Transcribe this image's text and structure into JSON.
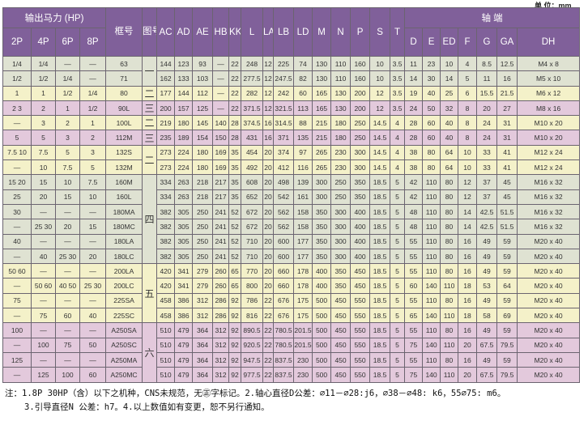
{
  "unit_label": "单 位：mm",
  "header": {
    "hp_group": "输出马力 (HP)",
    "poles": [
      "2P",
      "4P",
      "6P",
      "8P"
    ],
    "frame": "框号",
    "figure": "图号",
    "dims": [
      "AC",
      "AD",
      "AE",
      "HB",
      "KK",
      "L",
      "LA",
      "LB",
      "LD",
      "M",
      "N",
      "P",
      "S",
      "T"
    ],
    "shaft_group": "轴 端",
    "shaft": [
      "D",
      "E",
      "ED",
      "F",
      "G",
      "GA",
      "DH"
    ]
  },
  "row_colors": [
    "green",
    "green",
    "yellow",
    "pink",
    "yellow",
    "pink",
    "yellow",
    "yellow",
    "green",
    "green",
    "green",
    "green",
    "green",
    "green",
    "yellow",
    "yellow",
    "yellow",
    "yellow",
    "pink",
    "pink",
    "pink",
    "pink"
  ],
  "figure_groups": [
    {
      "label": "一",
      "rows": 2
    },
    {
      "label": "二",
      "rows": 1
    },
    {
      "label": "三",
      "rows": 1
    },
    {
      "label": "二",
      "rows": 1
    },
    {
      "label": "三",
      "rows": 1
    },
    {
      "label": "二",
      "rows": 2
    },
    {
      "label": "四",
      "rows": 6
    },
    {
      "label": "五",
      "rows": 4
    },
    {
      "label": "六",
      "rows": 4
    }
  ],
  "rows": [
    {
      "hp": [
        "1/4",
        "1/4",
        "—",
        "—"
      ],
      "frame": "63",
      "dims": [
        "144",
        "123",
        "93",
        "—",
        "22",
        "248",
        "12",
        "225",
        "74",
        "130",
        "110",
        "160",
        "10",
        "3.5"
      ],
      "shaft": [
        "11",
        "23",
        "10",
        "4",
        "8.5",
        "12.5",
        "M4 x 8"
      ]
    },
    {
      "hp": [
        "1/2",
        "1/2",
        "1/4",
        "—"
      ],
      "frame": "71",
      "dims": [
        "162",
        "133",
        "103",
        "—",
        "22",
        "277.5",
        "12",
        "247.5",
        "82",
        "130",
        "110",
        "160",
        "10",
        "3.5"
      ],
      "shaft": [
        "14",
        "30",
        "14",
        "5",
        "11",
        "16",
        "M5 x 10"
      ]
    },
    {
      "hp": [
        "1",
        "1",
        "1/2",
        "1/4"
      ],
      "frame": "80",
      "dims": [
        "177",
        "144",
        "112",
        "—",
        "22",
        "282",
        "12",
        "242",
        "60",
        "165",
        "130",
        "200",
        "12",
        "3.5"
      ],
      "shaft": [
        "19",
        "40",
        "25",
        "6",
        "15.5",
        "21.5",
        "M6 x 12"
      ]
    },
    {
      "hp": [
        "2 3",
        "2",
        "1",
        "1/2"
      ],
      "frame": "90L",
      "dims": [
        "200",
        "157",
        "125",
        "—",
        "22",
        "371.5",
        "12",
        "321.5",
        "113",
        "165",
        "130",
        "200",
        "12",
        "3.5"
      ],
      "shaft": [
        "24",
        "50",
        "32",
        "8",
        "20",
        "27",
        "M8 x 16"
      ]
    },
    {
      "hp": [
        "—",
        "3",
        "2",
        "1"
      ],
      "frame": "100L",
      "dims": [
        "219",
        "180",
        "145",
        "140",
        "28",
        "374.5",
        "16",
        "314.5",
        "88",
        "215",
        "180",
        "250",
        "14.5",
        "4"
      ],
      "shaft": [
        "28",
        "60",
        "40",
        "8",
        "24",
        "31",
        "M10 x 20"
      ]
    },
    {
      "hp": [
        "5",
        "5",
        "3",
        "2"
      ],
      "frame": "112M",
      "dims": [
        "235",
        "189",
        "154",
        "150",
        "28",
        "431",
        "16",
        "371",
        "135",
        "215",
        "180",
        "250",
        "14.5",
        "4"
      ],
      "shaft": [
        "28",
        "60",
        "40",
        "8",
        "24",
        "31",
        "M10 x 20"
      ]
    },
    {
      "hp": [
        "7.5 10",
        "7.5",
        "5",
        "3"
      ],
      "frame": "132S",
      "dims": [
        "273",
        "224",
        "180",
        "169",
        "35",
        "454",
        "20",
        "374",
        "97",
        "265",
        "230",
        "300",
        "14.5",
        "4"
      ],
      "shaft": [
        "38",
        "80",
        "64",
        "10",
        "33",
        "41",
        "M12 x 24"
      ]
    },
    {
      "hp": [
        "—",
        "10",
        "7.5",
        "5"
      ],
      "frame": "132M",
      "dims": [
        "273",
        "224",
        "180",
        "169",
        "35",
        "492",
        "20",
        "412",
        "116",
        "265",
        "230",
        "300",
        "14.5",
        "4"
      ],
      "shaft": [
        "38",
        "80",
        "64",
        "10",
        "33",
        "41",
        "M12 x 24"
      ]
    },
    {
      "hp": [
        "15 20",
        "15",
        "10",
        "7.5"
      ],
      "frame": "160M",
      "dims": [
        "334",
        "263",
        "218",
        "217",
        "35",
        "608",
        "20",
        "498",
        "139",
        "300",
        "250",
        "350",
        "18.5",
        "5"
      ],
      "shaft": [
        "42",
        "110",
        "80",
        "12",
        "37",
        "45",
        "M16 x 32"
      ]
    },
    {
      "hp": [
        "25",
        "20",
        "15",
        "10"
      ],
      "frame": "160L",
      "dims": [
        "334",
        "263",
        "218",
        "217",
        "35",
        "652",
        "20",
        "542",
        "161",
        "300",
        "250",
        "350",
        "18.5",
        "5"
      ],
      "shaft": [
        "42",
        "110",
        "80",
        "12",
        "37",
        "45",
        "M16 x 32"
      ]
    },
    {
      "hp": [
        "30",
        "—",
        "—",
        "—"
      ],
      "frame": "180MA",
      "dims": [
        "382",
        "305",
        "250",
        "241",
        "52",
        "672",
        "20",
        "562",
        "158",
        "350",
        "300",
        "400",
        "18.5",
        "5"
      ],
      "shaft": [
        "48",
        "110",
        "80",
        "14",
        "42.5",
        "51.5",
        "M16 x 32"
      ]
    },
    {
      "hp": [
        "—",
        "25 30",
        "20",
        "15"
      ],
      "frame": "180MC",
      "dims": [
        "382",
        "305",
        "250",
        "241",
        "52",
        "672",
        "20",
        "562",
        "158",
        "350",
        "300",
        "400",
        "18.5",
        "5"
      ],
      "shaft": [
        "48",
        "110",
        "80",
        "14",
        "42.5",
        "51.5",
        "M16 x 32"
      ]
    },
    {
      "hp": [
        "40",
        "—",
        "—",
        "—"
      ],
      "frame": "180LA",
      "dims": [
        "382",
        "305",
        "250",
        "241",
        "52",
        "710",
        "20",
        "600",
        "177",
        "350",
        "300",
        "400",
        "18.5",
        "5"
      ],
      "shaft": [
        "55",
        "110",
        "80",
        "16",
        "49",
        "59",
        "M20 x 40"
      ]
    },
    {
      "hp": [
        "—",
        "40",
        "25 30",
        "20"
      ],
      "frame": "180LC",
      "dims": [
        "382",
        "305",
        "250",
        "241",
        "52",
        "710",
        "20",
        "600",
        "177",
        "350",
        "300",
        "400",
        "18.5",
        "5"
      ],
      "shaft": [
        "55",
        "110",
        "80",
        "16",
        "49",
        "59",
        "M20 x 40"
      ]
    },
    {
      "hp": [
        "50 60",
        "—",
        "—",
        "—"
      ],
      "frame": "200LA",
      "dims": [
        "420",
        "341",
        "279",
        "260",
        "65",
        "770",
        "20",
        "660",
        "178",
        "400",
        "350",
        "450",
        "18.5",
        "5"
      ],
      "shaft": [
        "55",
        "110",
        "80",
        "16",
        "49",
        "59",
        "M20 x 40"
      ]
    },
    {
      "hp": [
        "—",
        "50 60",
        "40 50",
        "25 30"
      ],
      "frame": "200LC",
      "dims": [
        "420",
        "341",
        "279",
        "260",
        "65",
        "800",
        "20",
        "660",
        "178",
        "400",
        "350",
        "450",
        "18.5",
        "5"
      ],
      "shaft": [
        "60",
        "140",
        "110",
        "18",
        "53",
        "64",
        "M20 x 40"
      ]
    },
    {
      "hp": [
        "75",
        "—",
        "—",
        "—"
      ],
      "frame": "225SA",
      "dims": [
        "458",
        "386",
        "312",
        "286",
        "92",
        "786",
        "22",
        "676",
        "175",
        "500",
        "450",
        "550",
        "18.5",
        "5"
      ],
      "shaft": [
        "55",
        "110",
        "80",
        "16",
        "49",
        "59",
        "M20 x 40"
      ]
    },
    {
      "hp": [
        "—",
        "75",
        "60",
        "40"
      ],
      "frame": "225SC",
      "dims": [
        "458",
        "386",
        "312",
        "286",
        "92",
        "816",
        "22",
        "676",
        "175",
        "500",
        "450",
        "550",
        "18.5",
        "5"
      ],
      "shaft": [
        "65",
        "140",
        "110",
        "18",
        "58",
        "69",
        "M20 x 40"
      ]
    },
    {
      "hp": [
        "100",
        "—",
        "—",
        "—"
      ],
      "frame": "A250SA",
      "dims": [
        "510",
        "479",
        "364",
        "312",
        "92",
        "890.5",
        "22",
        "780.5",
        "201.5",
        "500",
        "450",
        "550",
        "18.5",
        "5"
      ],
      "shaft": [
        "55",
        "110",
        "80",
        "16",
        "49",
        "59",
        "M20 x 40"
      ]
    },
    {
      "hp": [
        "—",
        "100",
        "75",
        "50"
      ],
      "frame": "A250SC",
      "dims": [
        "510",
        "479",
        "364",
        "312",
        "92",
        "920.5",
        "22",
        "780.5",
        "201.5",
        "500",
        "450",
        "550",
        "18.5",
        "5"
      ],
      "shaft": [
        "75",
        "140",
        "110",
        "20",
        "67.5",
        "79.5",
        "M20 x 40"
      ]
    },
    {
      "hp": [
        "125",
        "—",
        "—",
        "—"
      ],
      "frame": "A250MA",
      "dims": [
        "510",
        "479",
        "364",
        "312",
        "92",
        "947.5",
        "22",
        "837.5",
        "230",
        "500",
        "450",
        "550",
        "18.5",
        "5"
      ],
      "shaft": [
        "55",
        "110",
        "80",
        "16",
        "49",
        "59",
        "M20 x 40"
      ]
    },
    {
      "hp": [
        "—",
        "125",
        "100",
        "60"
      ],
      "frame": "A250MC",
      "dims": [
        "510",
        "479",
        "364",
        "312",
        "92",
        "977.5",
        "22",
        "837.5",
        "230",
        "500",
        "450",
        "550",
        "18.5",
        "5"
      ],
      "shaft": [
        "75",
        "140",
        "110",
        "20",
        "67.5",
        "79.5",
        "M20 x 40"
      ]
    }
  ],
  "notes": {
    "line1": "注：1.8P 30HP（含）以下之机种，CNS未规范，无㊣字标记。2.轴心直径D公差：⌀11－⌀28:j6，⌀38－⌀48: k6，55⌀75: m6。",
    "line2": "3.引导直径N  公差：h7。4.以上数值如有变更，恕不另行通知。"
  },
  "colors": {
    "header": "#80609a",
    "green": "#dfe2d2",
    "yellow": "#f4f1c9",
    "pink": "#e3c9dc"
  }
}
